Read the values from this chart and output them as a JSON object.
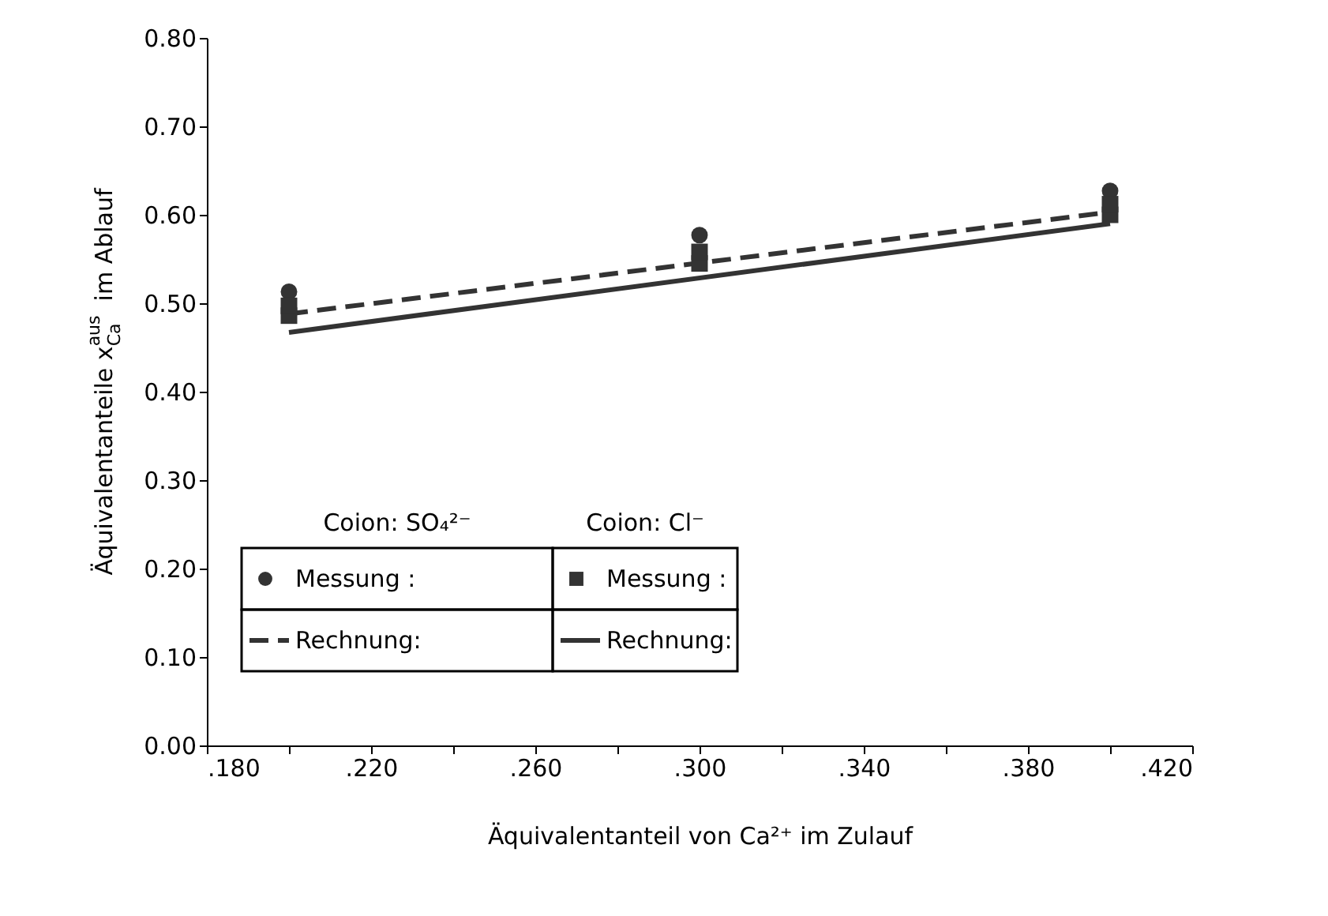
{
  "chart_data": {
    "type": "scatter",
    "xlabel": "Äquivalentanteil von Ca²⁺ im Zulauf",
    "ylabel": "Äquivalentanteile x$_{Ca}$$^{aus}$ im Ablauf",
    "xlim": [
      0.18,
      0.42
    ],
    "xticks": [
      {
        "value": 0.18,
        "label": ".180"
      },
      {
        "value": 0.2,
        "label": null
      },
      {
        "value": 0.22,
        "label": ".220"
      },
      {
        "value": 0.24,
        "label": null
      },
      {
        "value": 0.26,
        "label": ".260"
      },
      {
        "value": 0.28,
        "label": null
      },
      {
        "value": 0.3,
        "label": ".300"
      },
      {
        "value": 0.32,
        "label": null
      },
      {
        "value": 0.34,
        "label": ".340"
      },
      {
        "value": 0.36,
        "label": null
      },
      {
        "value": 0.38,
        "label": ".380"
      },
      {
        "value": 0.4,
        "label": null
      },
      {
        "value": 0.42,
        "label": ".420"
      }
    ],
    "ylim": [
      0,
      0.8
    ],
    "yticks": [
      {
        "value": 0,
        "label": "0.00"
      },
      {
        "value": 0.1,
        "label": "0.10"
      },
      {
        "value": 0.2,
        "label": "0.20"
      },
      {
        "value": 0.3,
        "label": "0.30"
      },
      {
        "value": 0.4,
        "label": "0.40"
      },
      {
        "value": 0.5,
        "label": "0.50"
      },
      {
        "value": 0.6,
        "label": "0.60"
      },
      {
        "value": 0.7,
        "label": "0.70"
      },
      {
        "value": 0.8,
        "label": "0.80"
      }
    ],
    "grid": false,
    "legend": "bottom left",
    "annotations": [
      "Coion: SO₄²⁻",
      "Coion: Cl⁻"
    ],
    "series": [
      {
        "name": "Messung :",
        "marker": "circle",
        "color": "#333333",
        "x": [
          0.2,
          0.3,
          0.4
        ],
        "values": [
          0.513,
          0.577,
          0.627
        ]
      },
      {
        "name": "Rechnung:",
        "type": "line",
        "line_style": "dashed",
        "color": "#333333",
        "x": [
          0.2,
          0.4
        ],
        "values": [
          0.488,
          0.603
        ]
      },
      {
        "name": "Messung :",
        "marker": "square",
        "color": "#333333",
        "x": [
          0.2,
          0.2,
          0.3,
          0.3,
          0.4,
          0.4
        ],
        "values": [
          0.486,
          0.497,
          0.545,
          0.558,
          0.6,
          0.612
        ]
      },
      {
        "name": "Rechnung:",
        "type": "line",
        "line_style": "solid",
        "color": "#333333",
        "x": [
          0.2,
          0.4
        ],
        "values": [
          0.467,
          0.59
        ]
      }
    ]
  }
}
